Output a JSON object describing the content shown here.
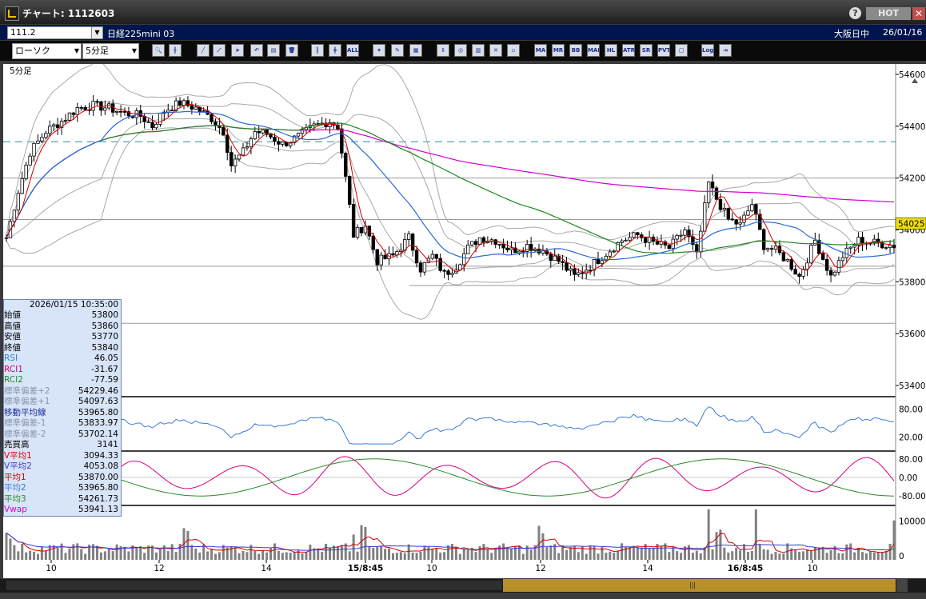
{
  "window": {
    "title": "チャート: 1112603",
    "help": "?",
    "hot_label": "HOT",
    "close": "✕"
  },
  "symbol": {
    "code": "111.2",
    "name": "日経225mini 03",
    "market": "大阪日中",
    "date": "26/01/16"
  },
  "toolbar": {
    "chart_type": "ローソク",
    "interval": "5分足"
  },
  "chart": {
    "interval_label": "5分足",
    "last_price_label": "54025",
    "price_axis": [
      "54600",
      "54400",
      "54200",
      "54000",
      "53800",
      "53600",
      "53400"
    ],
    "rsi_axis": [
      "80.00",
      "20.00"
    ],
    "rci_axis": [
      "80.00",
      "0.00",
      "-80.00"
    ],
    "volume_axis": [
      "10000",
      "0"
    ],
    "time_axis": [
      "10",
      "12",
      "14",
      "15/8:45",
      "10",
      "12",
      "14",
      "16/8:45",
      "10"
    ]
  },
  "info": {
    "datetime": "2026/01/15  10:35:00",
    "rows": [
      {
        "label": "始値",
        "value": "53800",
        "color": "#000000"
      },
      {
        "label": "高値",
        "value": "53860",
        "color": "#000000"
      },
      {
        "label": "安値",
        "value": "53770",
        "color": "#000000"
      },
      {
        "label": "終値",
        "value": "53840",
        "color": "#000000"
      },
      {
        "label": "RSI",
        "value": "46.05",
        "color": "#3a7cd6"
      },
      {
        "label": "RCI1",
        "value": "-31.67",
        "color": "#d6007a"
      },
      {
        "label": "RCI2",
        "value": "-77.59",
        "color": "#2a8a2a"
      },
      {
        "label": "標準偏差+2",
        "value": "54229.46",
        "color": "#8a94a8"
      },
      {
        "label": "標準偏差+1",
        "value": "54097.63",
        "color": "#8a94a8"
      },
      {
        "label": "移動平均線",
        "value": "53965.80",
        "color": "#1a2a9a"
      },
      {
        "label": "標準偏差-1",
        "value": "53833.97",
        "color": "#8a94a8"
      },
      {
        "label": "標準偏差-2",
        "value": "53702.14",
        "color": "#8a94a8"
      },
      {
        "label": "売買高",
        "value": "3141",
        "color": "#000000"
      },
      {
        "label": "V平均1",
        "value": "3094.33",
        "color": "#d60000"
      },
      {
        "label": "V平均2",
        "value": "4053.08",
        "color": "#3a3ad6"
      },
      {
        "label": "平均1",
        "value": "53870.00",
        "color": "#d60000"
      },
      {
        "label": "平均2",
        "value": "53965.80",
        "color": "#3a7cd6"
      },
      {
        "label": "平均3",
        "value": "54261.73",
        "color": "#2a8a2a"
      },
      {
        "label": "Vwap",
        "value": "53941.13",
        "color": "#d600d6"
      }
    ]
  },
  "chart_data": {
    "type": "candlestick",
    "x_ticks": [
      "10",
      "12",
      "14",
      "15/8:45",
      "10",
      "12",
      "14",
      "16/8:45",
      "10"
    ],
    "y_ticks": [
      54600,
      54400,
      54200,
      54000,
      53800,
      53600,
      53400
    ],
    "ylim": [
      53360,
      54640
    ],
    "close_path": [
      [
        0,
        53970
      ],
      [
        3,
        54150
      ],
      [
        6,
        54300
      ],
      [
        10,
        54380
      ],
      [
        14,
        54420
      ],
      [
        18,
        54470
      ],
      [
        22,
        54480
      ],
      [
        26,
        54470
      ],
      [
        30,
        54450
      ],
      [
        34,
        54440
      ],
      [
        37,
        54400
      ],
      [
        40,
        54460
      ],
      [
        44,
        54490
      ],
      [
        48,
        54470
      ],
      [
        52,
        54430
      ],
      [
        55,
        54380
      ],
      [
        57,
        54250
      ],
      [
        60,
        54300
      ],
      [
        63,
        54380
      ],
      [
        66,
        54370
      ],
      [
        70,
        54330
      ],
      [
        74,
        54360
      ],
      [
        78,
        54400
      ],
      [
        82,
        54420
      ],
      [
        84,
        54400
      ],
      [
        86,
        54200
      ],
      [
        88,
        53980
      ],
      [
        91,
        54020
      ],
      [
        94,
        53880
      ],
      [
        98,
        53900
      ],
      [
        102,
        53970
      ],
      [
        105,
        53850
      ],
      [
        108,
        53900
      ],
      [
        111,
        53830
      ],
      [
        114,
        53860
      ],
      [
        117,
        53930
      ],
      [
        120,
        53970
      ],
      [
        124,
        53960
      ],
      [
        128,
        53920
      ],
      [
        132,
        53940
      ],
      [
        136,
        53920
      ],
      [
        140,
        53880
      ],
      [
        144,
        53820
      ],
      [
        148,
        53860
      ],
      [
        152,
        53910
      ],
      [
        156,
        53960
      ],
      [
        160,
        53980
      ],
      [
        164,
        53950
      ],
      [
        168,
        53930
      ],
      [
        172,
        54000
      ],
      [
        175,
        53900
      ],
      [
        178,
        54180
      ],
      [
        180,
        54120
      ],
      [
        183,
        54040
      ],
      [
        186,
        54020
      ],
      [
        189,
        54100
      ],
      [
        192,
        53940
      ],
      [
        195,
        53920
      ],
      [
        198,
        53880
      ],
      [
        201,
        53820
      ],
      [
        205,
        53960
      ],
      [
        209,
        53820
      ],
      [
        212,
        53900
      ],
      [
        216,
        53960
      ],
      [
        220,
        53950
      ],
      [
        225,
        53940
      ]
    ],
    "price_levels": {
      "dashed_cyan": 54340,
      "gray_line_1": 54200,
      "gray_line_2": 54040,
      "gray_line_3": 53860,
      "gray_line_4": 53640
    }
  }
}
